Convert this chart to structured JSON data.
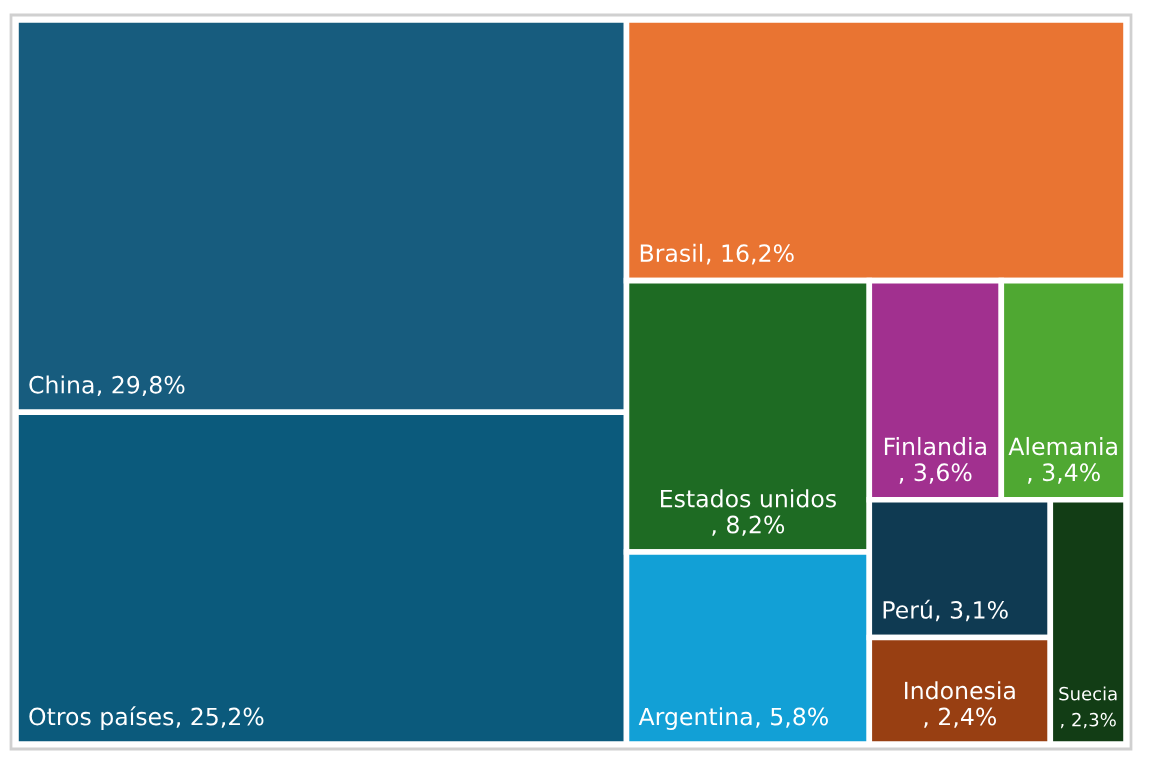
{
  "chart_data": {
    "type": "other",
    "categories": [
      "China",
      "Otros países",
      "Brasil",
      "Estados unidos",
      "Argentina",
      "Finlandia",
      "Alemania",
      "Perú",
      "Indonesia",
      "Suecia"
    ],
    "values": [
      29.8,
      25.2,
      16.2,
      8.2,
      5.8,
      3.6,
      3.4,
      3.1,
      2.4,
      2.3
    ],
    "value_labels": [
      ", 29,8%",
      ", 25,2%",
      ", 16,2%",
      ", 8,2%",
      ", 5,8%",
      ", 3,6%",
      ", 3,4%",
      ", 3,1%",
      ", 2,4%",
      ", 2,3%"
    ],
    "colors": [
      "#175c7e",
      "#0b5a7c",
      "#e97432",
      "#1e6b23",
      "#12a0d6",
      "#a1308f",
      "#4fa832",
      "#0f3a52",
      "#983f12",
      "#123d15"
    ]
  }
}
